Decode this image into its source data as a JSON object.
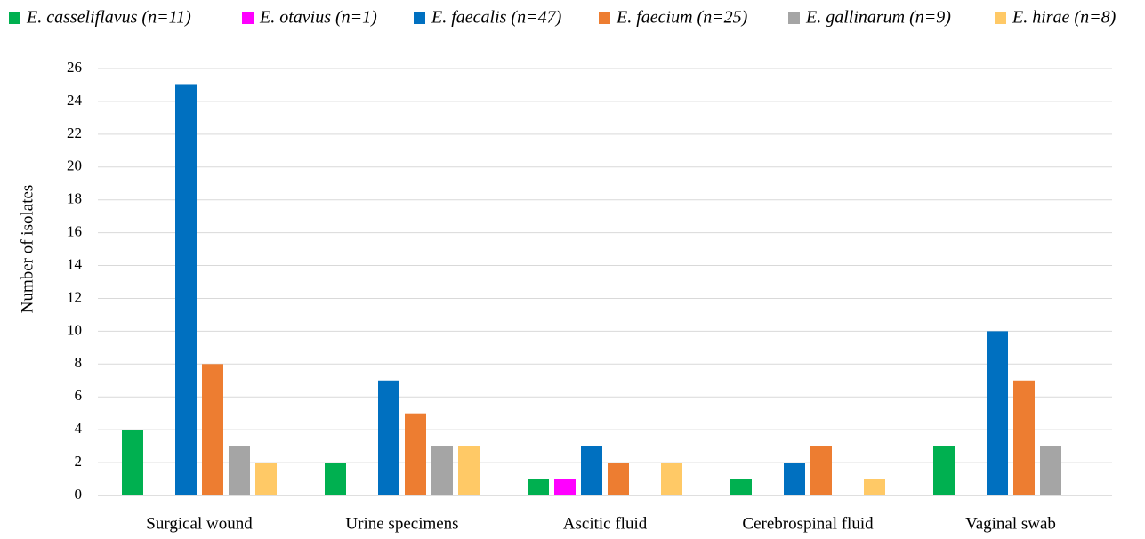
{
  "chart_data": {
    "type": "bar",
    "y_label": "Number of isolates",
    "categories": [
      "Surgical wound",
      "Urine specimens",
      "Ascitic fluid",
      "Cerebrospinal fluid",
      "Vaginal swab"
    ],
    "series": [
      {
        "name": "E. casseliflavus (n=11)",
        "color": "#00b050",
        "values": [
          4,
          2,
          1,
          1,
          3
        ]
      },
      {
        "name": "E. otavius (n=1)",
        "color": "#ff00ff",
        "values": [
          0,
          0,
          1,
          0,
          0
        ]
      },
      {
        "name": "E. faecalis (n=47)",
        "color": "#0070c0",
        "values": [
          25,
          7,
          3,
          2,
          10
        ]
      },
      {
        "name": "E. faecium (n=25)",
        "color": "#ed7d31",
        "values": [
          8,
          5,
          2,
          3,
          7
        ]
      },
      {
        "name": "E. gallinarum (n=9)",
        "color": "#a5a5a5",
        "values": [
          3,
          3,
          0,
          0,
          3
        ]
      },
      {
        "name": "E. hirae (n=8)",
        "color": "#ffc966",
        "values": [
          2,
          3,
          2,
          1,
          0
        ]
      }
    ],
    "ylim": [
      0,
      26
    ],
    "yticks": [
      0,
      2,
      4,
      6,
      8,
      10,
      12,
      14,
      16,
      18,
      20,
      22,
      24,
      26
    ],
    "grid": true,
    "legend": "top"
  }
}
